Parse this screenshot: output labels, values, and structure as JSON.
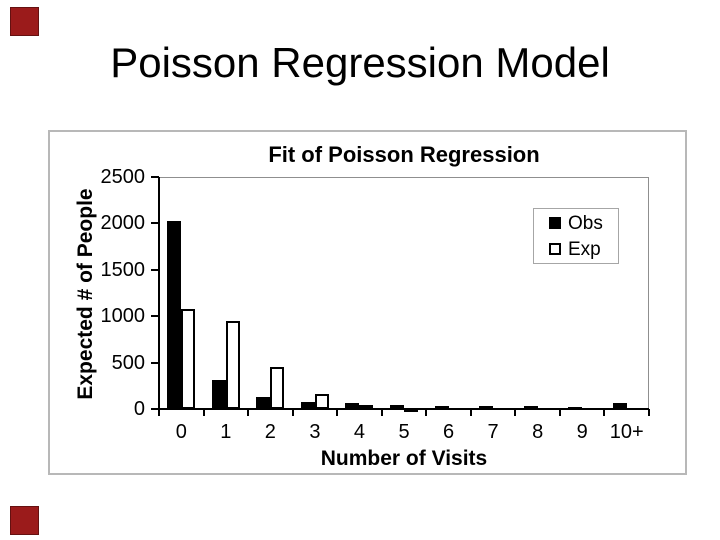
{
  "slide": {
    "title": "Poisson Regression Model"
  },
  "decorations": {
    "corner_square_color": "#9B1B1B"
  },
  "chart_data": {
    "type": "bar",
    "title": "Fit of Poisson Regression",
    "xlabel": "Number of Visits",
    "ylabel": "Expected # of People",
    "categories": [
      "0",
      "1",
      "2",
      "3",
      "4",
      "5",
      "6",
      "7",
      "8",
      "9",
      "10+"
    ],
    "series": [
      {
        "name": "Obs",
        "style": "filled",
        "color": "#000000",
        "values": [
          2030,
          310,
          125,
          75,
          65,
          38,
          32,
          30,
          30,
          25,
          70
        ]
      },
      {
        "name": "Exp",
        "style": "outlined",
        "color": "#ffffff",
        "values": [
          1075,
          950,
          450,
          165,
          48,
          15,
          5,
          2,
          1,
          0,
          0
        ]
      }
    ],
    "ylim": [
      0,
      2500
    ],
    "ytick_step": 500,
    "yticks": [
      0,
      500,
      1000,
      1500,
      2000,
      2500
    ],
    "legend": {
      "entries": [
        "Obs",
        "Exp"
      ],
      "position": "top-right"
    },
    "grid": false
  }
}
